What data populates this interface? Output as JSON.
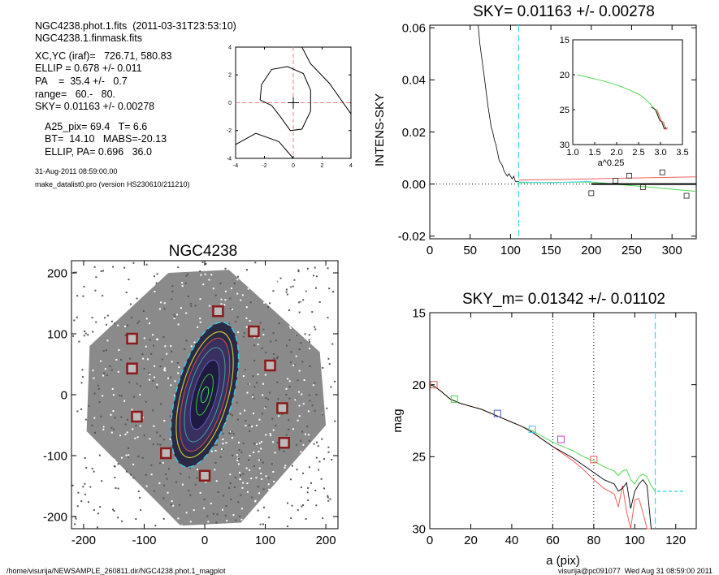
{
  "header": {
    "line1": "NGC4238.phot.1.fits  (2011-03-31T23:53:10)",
    "line2": "NGC4238.1.finmask.fits",
    "params": [
      "XC,YC (iraf)=   726.71, 580.83",
      "ELLIP = 0.678 +/- 0.011",
      "PA    =  35.4 +/-   0.7",
      "range=   60.-   80.",
      "SKY= 0.01163 +/- 0.00278"
    ],
    "derived": [
      "A25_pix= 69.4   T= 6.6",
      "BT=  14.10   MABS=-20.13",
      "ELLIP, PA= 0.696   36.0"
    ],
    "date": "31-Aug-2011 08:59:00.00",
    "program": "make_datalist0.pro (version HS230610/211210)"
  },
  "footer": {
    "path": "/home/visurija/NEWSAMPLE_260811.dir/NGC4238.phot.1_magplot",
    "user": "visurija@pc091077  Wed Aug 31 08:59:00 2011"
  },
  "chart_data": [
    {
      "id": "contour",
      "type": "contour",
      "xlim": [
        -4,
        4
      ],
      "ylim": [
        -4,
        4
      ],
      "xticks": [
        "-4",
        "-2",
        "0",
        "2",
        "4"
      ],
      "yticks": [
        "-4",
        "-2",
        "0",
        "2",
        "4"
      ],
      "crosshair": [
        0,
        0
      ],
      "color_dashed": "#f08080"
    },
    {
      "id": "image",
      "type": "image",
      "title": "NGC4238",
      "xlim": [
        -220,
        220
      ],
      "ylim": [
        -220,
        220
      ],
      "xticks": [
        "-200",
        "-100",
        "0",
        "100",
        "200"
      ],
      "yticks": [
        "-200",
        "-100",
        "0",
        "100",
        "200"
      ],
      "masked_stars": [
        [
          22,
          137
        ],
        [
          81,
          104
        ],
        [
          -120,
          92
        ],
        [
          -120,
          43
        ],
        [
          108,
          48
        ],
        [
          128,
          -22
        ],
        [
          -112,
          -36
        ],
        [
          131,
          -79
        ],
        [
          -64,
          -96
        ],
        [
          0,
          -133
        ]
      ],
      "ellipse": {
        "center": [
          0,
          0
        ],
        "pa_deg": 35.4,
        "ellip": 0.678
      },
      "colors": {
        "mask": "#8b1a1a",
        "dashed": "#40c8e0"
      }
    },
    {
      "id": "sky",
      "type": "line",
      "title": "SKY= 0.01163 +/- 0.00278",
      "ylabel": "INTENS-SKY",
      "xlim": [
        0,
        330
      ],
      "ylim": [
        -0.021,
        0.061
      ],
      "xticks": [
        "0",
        "50",
        "100",
        "150",
        "200",
        "250",
        "300"
      ],
      "yticks": [
        "-0.02",
        "0.00",
        "0.02",
        "0.04",
        "0.06"
      ],
      "profile_x": [
        60,
        62,
        65,
        68,
        70,
        72,
        74,
        76,
        78,
        80,
        82,
        84,
        86,
        88,
        90,
        92,
        94,
        96,
        98,
        100,
        102,
        104,
        106,
        108,
        110
      ],
      "profile_y": [
        0.061,
        0.054,
        0.047,
        0.04,
        0.035,
        0.03,
        0.026,
        0.022,
        0.02,
        0.017,
        0.015,
        0.012,
        0.009,
        0.008,
        0.007,
        0.005,
        0.004,
        0.003,
        0.004,
        0.003,
        0.002,
        0.003,
        0.001,
        0.001,
        0.001
      ],
      "sky_points": [
        [
          200,
          -0.0035
        ],
        [
          230,
          0.0013
        ],
        [
          247,
          0.0032
        ],
        [
          264,
          -0.0012
        ],
        [
          288,
          0.0045
        ],
        [
          318,
          -0.0045
        ]
      ],
      "sky_level": 0.0,
      "vline_x": 110,
      "inset": {
        "xlabel": "a^0.25",
        "xlim": [
          1.0,
          3.5
        ],
        "ylim": [
          15,
          30
        ],
        "xticks": [
          "1.0",
          "1.5",
          "2.0",
          "2.5",
          "3.0",
          "3.5"
        ],
        "yticks": [
          "15",
          "20",
          "25",
          "30"
        ],
        "x": [
          1.1,
          1.3,
          1.5,
          1.7,
          1.9,
          2.1,
          2.3,
          2.5,
          2.6,
          2.7,
          2.8,
          2.9,
          3.0,
          3.05,
          3.1,
          3.15
        ],
        "y": [
          20.0,
          20.3,
          20.6,
          20.9,
          21.3,
          21.7,
          22.2,
          22.8,
          23.2,
          23.8,
          24.4,
          25.2,
          26.3,
          27.0,
          27.5,
          27.8
        ]
      },
      "colors": {
        "vline": "#40d8e8",
        "red": "#f06060",
        "green": "#50d850",
        "cyan": "#40d8e8"
      }
    },
    {
      "id": "mag",
      "type": "line",
      "title": "SKY_m=  0.01342 +/- 0.01102",
      "xlabel": "a (pix)",
      "ylabel": "mag",
      "xlim": [
        0,
        130
      ],
      "ylim": [
        15,
        30
      ],
      "xticks": [
        "0",
        "20",
        "40",
        "60",
        "80",
        "100",
        "120"
      ],
      "yticks": [
        "15",
        "20",
        "25",
        "30"
      ],
      "x": [
        0,
        2,
        5,
        10,
        15,
        20,
        25,
        30,
        35,
        40,
        45,
        50,
        55,
        60,
        65,
        70,
        75,
        80,
        85,
        90,
        92,
        94,
        96,
        98,
        100,
        102,
        104,
        106,
        108,
        110
      ],
      "y_black": [
        20.0,
        20.1,
        20.4,
        21.0,
        21.3,
        21.5,
        21.7,
        22.0,
        22.3,
        22.6,
        22.9,
        23.3,
        23.8,
        24.3,
        24.7,
        25.1,
        25.6,
        26.1,
        26.6,
        26.9,
        27.4,
        27.2,
        26.8,
        28.6,
        27.4,
        26.9,
        26.6,
        27.0,
        30.0,
        30.0
      ],
      "y_red": [
        20.0,
        20.1,
        20.4,
        21.0,
        21.3,
        21.5,
        21.7,
        22.0,
        22.3,
        22.6,
        22.9,
        23.3,
        23.8,
        24.3,
        24.8,
        25.3,
        25.9,
        26.6,
        27.2,
        27.6,
        28.5,
        27.0,
        28.8,
        30.0,
        28.0,
        27.9,
        28.9,
        30.0,
        30.0,
        30.0
      ],
      "y_green": [
        20.0,
        20.1,
        20.4,
        21.0,
        21.3,
        21.5,
        21.7,
        22.0,
        22.3,
        22.6,
        22.9,
        23.2,
        23.6,
        24.0,
        24.3,
        24.6,
        25.0,
        25.3,
        25.7,
        26.0,
        26.3,
        26.0,
        25.9,
        26.6,
        26.9,
        26.4,
        26.2,
        26.4,
        27.0,
        27.4
      ],
      "markers": [
        [
          2,
          20.0
        ],
        [
          12,
          21.0
        ],
        [
          33,
          22.0
        ],
        [
          50,
          23.1
        ],
        [
          64,
          23.8
        ],
        [
          80,
          25.2
        ]
      ],
      "vlines_dotted": [
        60,
        80
      ],
      "vline_dashed": 110,
      "sky_tick": {
        "x": [
          111,
          125
        ],
        "y": 27.4
      },
      "colors": {
        "vline": "#40d8e8",
        "red": "#f06060",
        "green": "#50d850"
      }
    }
  ]
}
